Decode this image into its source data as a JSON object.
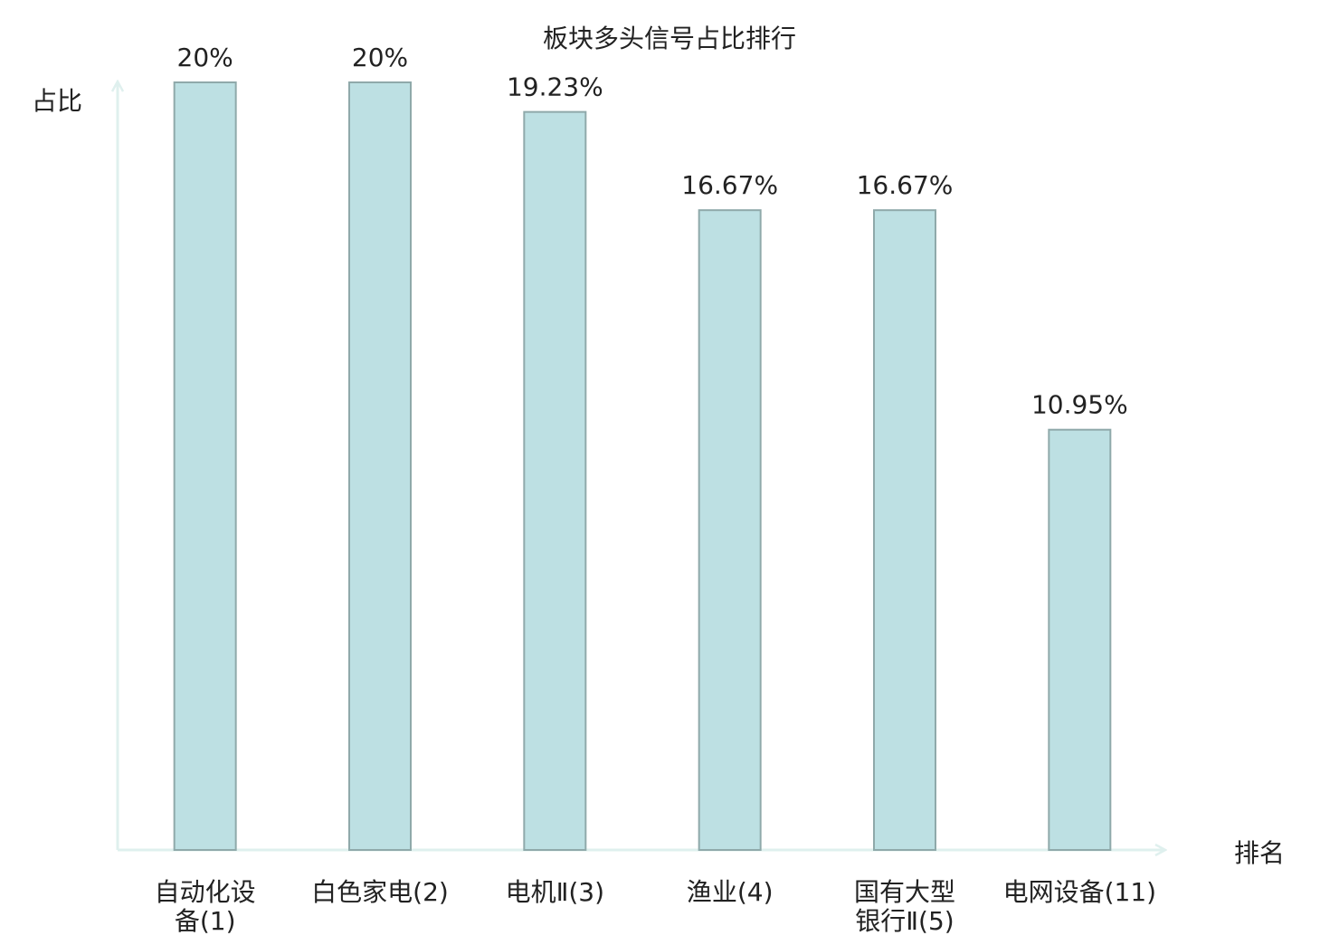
{
  "chart_data": {
    "type": "bar",
    "title": "板块多头信号占比排行",
    "y_label": "占比",
    "x_label": "排名",
    "categories": [
      "自动化设备(1)",
      "白色家电(2)",
      "电机Ⅱ(3)",
      "渔业(4)",
      "国有大型银行Ⅱ(5)",
      "电网设备(11)"
    ],
    "values": [
      20,
      20,
      19.23,
      16.67,
      16.67,
      10.95
    ],
    "value_labels": [
      "20%",
      "20%",
      "19.23%",
      "16.67%",
      "16.67%",
      "10.95%"
    ],
    "color": "#bde0e3",
    "edge_color": "#8fa9aa",
    "category_label_colors": [
      "#222222",
      "#222222",
      "#222222",
      "#222222",
      "#222222",
      "#e02020"
    ],
    "ylim": [
      0,
      20
    ]
  }
}
